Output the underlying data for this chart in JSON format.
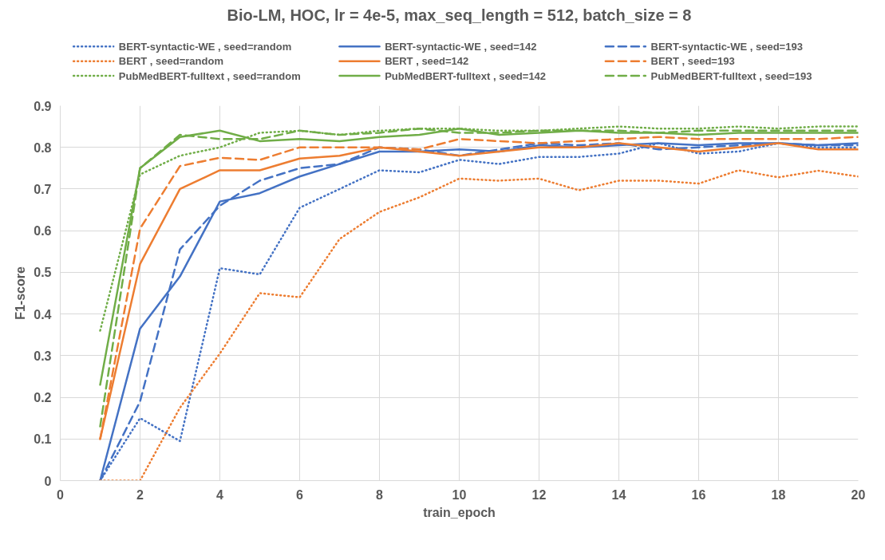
{
  "chart_data": {
    "type": "line",
    "title": "Bio-LM, HOC, lr = 4e-5, max_seq_length = 512, batch_size = 8",
    "xlabel": "train_epoch",
    "ylabel": "F1-score",
    "x": [
      1,
      2,
      3,
      4,
      5,
      6,
      7,
      8,
      9,
      10,
      11,
      12,
      13,
      14,
      15,
      16,
      17,
      18,
      19,
      20
    ],
    "xlim": [
      0,
      20
    ],
    "xticks": [
      0,
      2,
      4,
      6,
      8,
      10,
      12,
      14,
      16,
      18,
      20
    ],
    "ylim": [
      0,
      0.9
    ],
    "yticks": [
      0,
      0.1,
      0.2,
      0.3,
      0.4,
      0.5,
      0.6,
      0.7,
      0.8,
      0.9
    ],
    "grid": true,
    "legend": "top",
    "marker": "none",
    "series": [
      {
        "name": "BERT-syntactic-WE , seed=random",
        "color": "#4472c4",
        "line_style": "dotted",
        "values": [
          0,
          0.15,
          0.095,
          0.51,
          0.495,
          0.655,
          0.7,
          0.745,
          0.74,
          0.77,
          0.76,
          0.777,
          0.777,
          0.785,
          0.81,
          0.785,
          0.79,
          0.81,
          0.8,
          0.8
        ]
      },
      {
        "name": "BERT-syntactic-WE , seed=142",
        "color": "#4472c4",
        "line_style": "solid",
        "values": [
          0,
          0.365,
          0.49,
          0.67,
          0.69,
          0.73,
          0.76,
          0.79,
          0.79,
          0.795,
          0.79,
          0.805,
          0.8,
          0.805,
          0.81,
          0.805,
          0.81,
          0.81,
          0.805,
          0.81
        ]
      },
      {
        "name": "BERT-syntactic-WE , seed=193",
        "color": "#4472c4",
        "line_style": "dashed",
        "values": [
          0,
          0.19,
          0.555,
          0.66,
          0.72,
          0.75,
          0.76,
          0.8,
          0.795,
          0.78,
          0.795,
          0.81,
          0.805,
          0.81,
          0.795,
          0.8,
          0.805,
          0.81,
          0.805,
          0.805
        ]
      },
      {
        "name": "BERT , seed=random",
        "color": "#ed7d31",
        "line_style": "dotted",
        "values": [
          0,
          0,
          0.175,
          0.305,
          0.45,
          0.44,
          0.58,
          0.645,
          0.68,
          0.725,
          0.72,
          0.725,
          0.697,
          0.72,
          0.72,
          0.713,
          0.745,
          0.728,
          0.744,
          0.73
        ]
      },
      {
        "name": "BERT , seed=142",
        "color": "#ed7d31",
        "line_style": "solid",
        "values": [
          0.1,
          0.52,
          0.7,
          0.745,
          0.745,
          0.773,
          0.78,
          0.8,
          0.79,
          0.78,
          0.79,
          0.8,
          0.8,
          0.81,
          0.8,
          0.79,
          0.8,
          0.81,
          0.795,
          0.795
        ]
      },
      {
        "name": "BERT , seed=193",
        "color": "#ed7d31",
        "line_style": "dashed",
        "values": [
          0.1,
          0.605,
          0.755,
          0.775,
          0.77,
          0.8,
          0.8,
          0.8,
          0.795,
          0.82,
          0.815,
          0.81,
          0.815,
          0.82,
          0.825,
          0.82,
          0.82,
          0.82,
          0.82,
          0.825
        ]
      },
      {
        "name": "PubMedBERT-fulltext , seed=random",
        "color": "#70ad47",
        "line_style": "dotted",
        "values": [
          0.36,
          0.735,
          0.78,
          0.8,
          0.835,
          0.84,
          0.83,
          0.84,
          0.845,
          0.845,
          0.84,
          0.84,
          0.845,
          0.85,
          0.845,
          0.845,
          0.85,
          0.845,
          0.85,
          0.85
        ]
      },
      {
        "name": "PubMedBERT-fulltext , seed=142",
        "color": "#70ad47",
        "line_style": "solid",
        "values": [
          0.23,
          0.75,
          0.825,
          0.84,
          0.815,
          0.82,
          0.815,
          0.825,
          0.83,
          0.845,
          0.83,
          0.835,
          0.84,
          0.835,
          0.835,
          0.83,
          0.835,
          0.835,
          0.835,
          0.835
        ]
      },
      {
        "name": "PubMedBERT-fulltext , seed=193",
        "color": "#70ad47",
        "line_style": "dashed",
        "values": [
          0.13,
          0.75,
          0.83,
          0.82,
          0.82,
          0.84,
          0.83,
          0.835,
          0.845,
          0.835,
          0.835,
          0.84,
          0.84,
          0.84,
          0.835,
          0.84,
          0.84,
          0.84,
          0.84,
          0.84
        ]
      }
    ]
  }
}
